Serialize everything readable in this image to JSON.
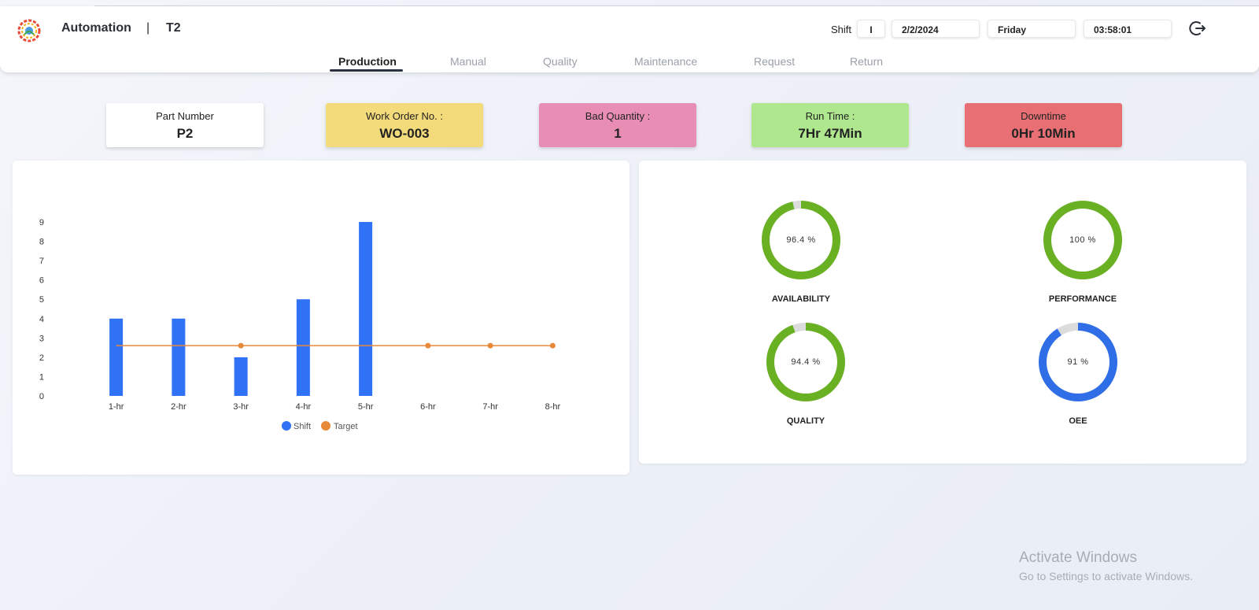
{
  "header": {
    "app_name": "Automation",
    "separator": "|",
    "station": "T2",
    "shift_label": "Shift",
    "shift_value": "I",
    "date": "2/2/2024",
    "day": "Friday",
    "time": "03:58:01",
    "logout_icon": "logout-icon"
  },
  "tabs": [
    {
      "label": "Production",
      "active": true
    },
    {
      "label": "Manual"
    },
    {
      "label": "Quality"
    },
    {
      "label": "Maintenance"
    },
    {
      "label": "Request"
    },
    {
      "label": "Return"
    }
  ],
  "cards": [
    {
      "label": "Part Number",
      "value": "P2",
      "color": "#ffffff"
    },
    {
      "label": "Work Order No. :",
      "value": "WO-003",
      "color": "#f3da7a"
    },
    {
      "label": "Bad Quantity :",
      "value": "1",
      "color": "#e88eb5"
    },
    {
      "label": "Run Time :",
      "value": "7Hr 47Min",
      "color": "#aee78e"
    },
    {
      "label": "Downtime",
      "value": "0Hr 10Min",
      "color": "#e86f74"
    }
  ],
  "chart_data": {
    "type": "bar",
    "categories": [
      "1-hr",
      "2-hr",
      "3-hr",
      "4-hr",
      "5-hr",
      "6-hr",
      "7-hr",
      "8-hr"
    ],
    "series": [
      {
        "name": "Shift",
        "type": "bar",
        "color": "#2f72f6",
        "values": [
          4,
          4,
          2,
          5,
          9,
          0,
          0,
          0
        ]
      },
      {
        "name": "Target",
        "type": "line",
        "color": "#e8893a",
        "values": [
          2.6,
          2.6,
          2.6,
          2.6,
          2.6,
          2.6,
          2.6,
          2.6
        ],
        "markers_at": [
          "3-hr",
          "6-hr",
          "7-hr",
          "8-hr"
        ]
      }
    ],
    "yticks": [
      0,
      1,
      2,
      3,
      4,
      5,
      6,
      7,
      8,
      9
    ],
    "ylim": [
      0,
      9
    ],
    "legend": "bottom-center"
  },
  "gauges": [
    {
      "label": "AVAILABILITY",
      "value": 96.4,
      "text": "96.4 %",
      "color": "#6ab023"
    },
    {
      "label": "PERFORMANCE",
      "value": 100,
      "text": "100 %",
      "color": "#6ab023"
    },
    {
      "label": "QUALITY",
      "value": 94.4,
      "text": "94.4 %",
      "color": "#6ab023"
    },
    {
      "label": "OEE",
      "value": 91,
      "text": "91 %",
      "color": "#2f6ee6"
    }
  ],
  "watermark": {
    "line1": "Activate Windows",
    "line2": "Go to Settings to activate Windows."
  }
}
